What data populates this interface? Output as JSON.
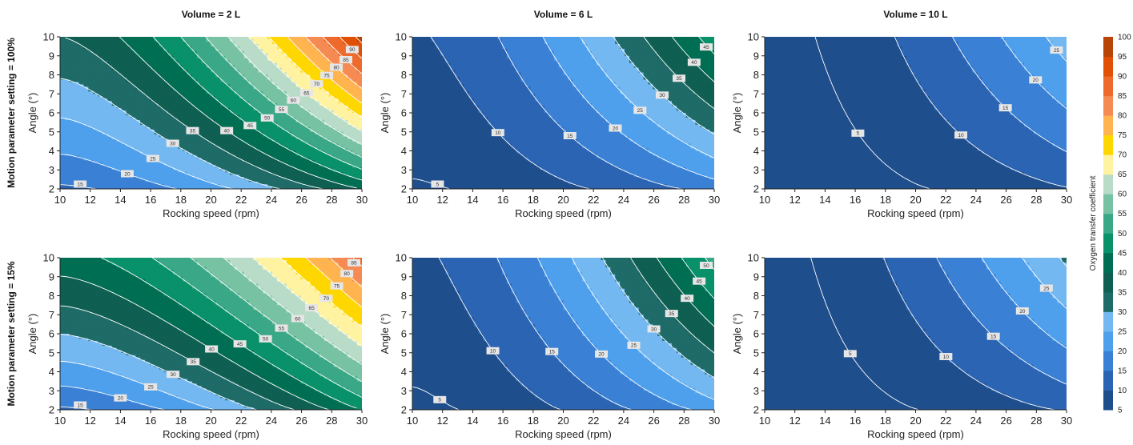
{
  "chart_data": {
    "type": "contour",
    "column_titles": [
      "Volume = 2 L",
      "Volume = 6 L",
      "Volume = 10 L"
    ],
    "row_labels": [
      "Motion parameter setting = 100%",
      "Motion parameter setting = 15%"
    ],
    "xlabel": "Rocking speed (rpm)",
    "ylabel": "Angle (°)",
    "xlim": [
      10,
      30
    ],
    "ylim": [
      2,
      10
    ],
    "x_ticks": [
      10,
      12,
      14,
      16,
      18,
      20,
      22,
      24,
      26,
      28,
      30
    ],
    "y_ticks": [
      2,
      3,
      4,
      5,
      6,
      7,
      8,
      9,
      10
    ],
    "levels": [
      5,
      10,
      15,
      20,
      25,
      30,
      35,
      40,
      45,
      50,
      55,
      60,
      65,
      70,
      75,
      80,
      85,
      90,
      95,
      100
    ],
    "colorbar": {
      "label": "Oxygen transfer coefficient",
      "min": 5,
      "max": 100,
      "ticks": [
        5,
        10,
        15,
        20,
        25,
        30,
        35,
        40,
        45,
        50,
        55,
        60,
        65,
        70,
        75,
        80,
        85,
        90,
        95,
        100
      ],
      "colors": [
        "#1f4e8c",
        "#2a64b2",
        "#3a80d4",
        "#4fa0ec",
        "#74b8f2",
        "#1e6b68",
        "#0f5f52",
        "#006e52",
        "#09916a",
        "#3aa886",
        "#78c2a4",
        "#b8dcc8",
        "#fff2a0",
        "#ffd700",
        "#ffb450",
        "#f58a52",
        "#ee6a2c",
        "#e05005",
        "#b84405"
      ]
    },
    "panels": [
      {
        "row": 0,
        "col": 0,
        "value_at_x10_y2": 14.0,
        "value_at_x30_y2": 40.0,
        "value_at_x10_y10": 35.0,
        "value_at_x30_y10": 97.0,
        "contour_labels": [
          15,
          20,
          25,
          30,
          35,
          40,
          45,
          50,
          55,
          60,
          65,
          70,
          75,
          80,
          85,
          90
        ]
      },
      {
        "row": 0,
        "col": 1,
        "value_at_x10_y2": 4.5,
        "value_at_x30_y2": 17.0,
        "value_at_x10_y10": 9.5,
        "value_at_x30_y10": 48.0,
        "contour_labels": [
          5,
          10,
          15,
          20,
          25,
          30,
          35,
          40,
          45
        ]
      },
      {
        "row": 0,
        "col": 2,
        "value_at_x10_y2": 2.0,
        "value_at_x30_y2": 9.6,
        "value_at_x10_y10": 3.5,
        "value_at_x30_y10": 27.5,
        "contour_labels": [
          5,
          10,
          15,
          20,
          25
        ]
      },
      {
        "row": 1,
        "col": 0,
        "value_at_x10_y2": 14.0,
        "value_at_x30_y2": 45.0,
        "value_at_x10_y10": 43.0,
        "value_at_x30_y10": 87.0,
        "contour_labels": [
          15,
          20,
          25,
          30,
          35,
          40,
          45,
          50,
          55,
          60,
          65,
          70,
          75,
          80,
          85
        ]
      },
      {
        "row": 1,
        "col": 1,
        "value_at_x10_y2": 4.0,
        "value_at_x30_y2": 22.0,
        "value_at_x10_y10": 9.0,
        "value_at_x30_y10": 52.0,
        "contour_labels": [
          5,
          10,
          15,
          20,
          25,
          30,
          35,
          40,
          45,
          50
        ]
      },
      {
        "row": 1,
        "col": 2,
        "value_at_x10_y2": 2.0,
        "value_at_x30_y2": 10.5,
        "value_at_x10_y10": 3.5,
        "value_at_x30_y10": 31.0,
        "contour_labels": [
          5,
          10,
          15,
          20,
          25
        ]
      }
    ]
  }
}
